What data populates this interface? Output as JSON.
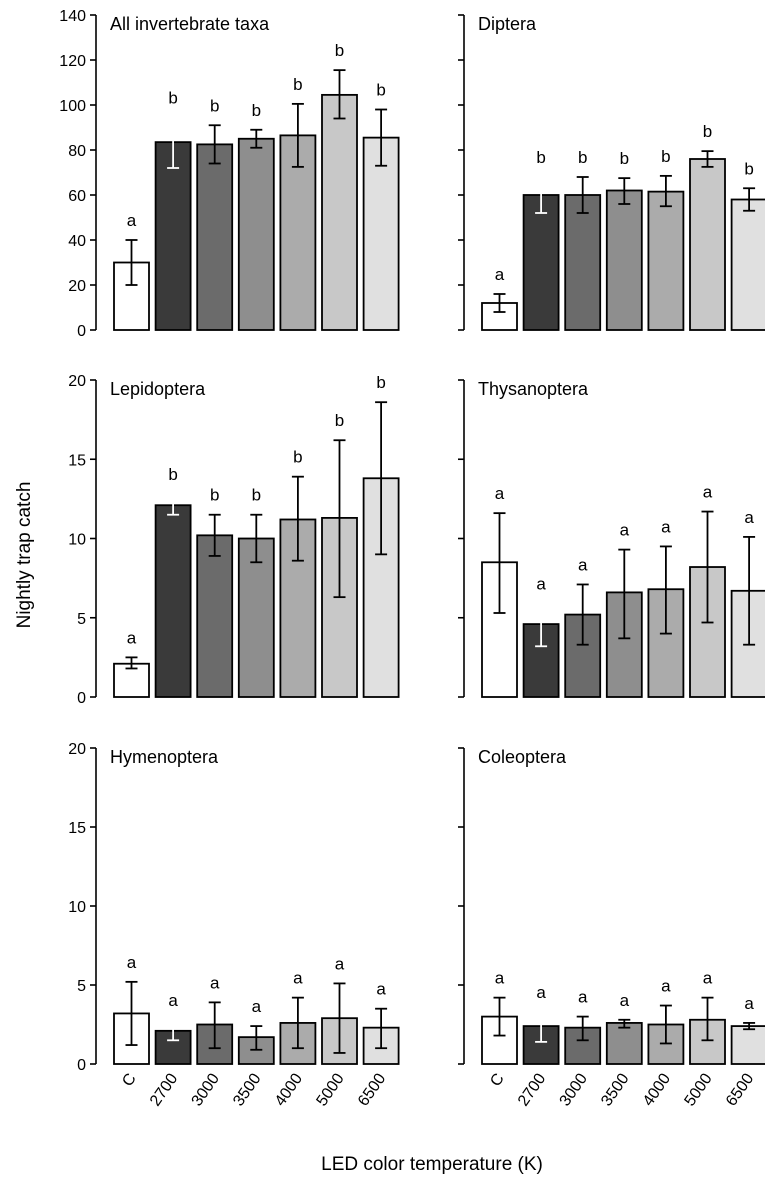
{
  "figure": {
    "ylabel": "Nightly trap catch",
    "xlabel": "LED color temperature (K)",
    "categories": [
      "C",
      "2700",
      "3000",
      "3500",
      "4000",
      "5000",
      "6500"
    ],
    "bar_colors": [
      "#ffffff",
      "#3a3a3a",
      "#6b6b6b",
      "#8e8e8e",
      "#ababab",
      "#c8c8c8",
      "#e0e0e0"
    ],
    "errorbar_colors": [
      "#000000",
      "#ffffff",
      "#000000",
      "#000000",
      "#000000",
      "#000000",
      "#000000"
    ]
  },
  "chart_data": [
    {
      "type": "bar",
      "title": "All invertebrate taxa",
      "categories": [
        "C",
        "2700",
        "3000",
        "3500",
        "4000",
        "5000",
        "6500"
      ],
      "values": [
        30,
        83.5,
        82.5,
        85,
        86.5,
        104.5,
        85.5
      ],
      "err_low": [
        20,
        72,
        74,
        81,
        72.5,
        94,
        73
      ],
      "err_high": [
        40,
        94.5,
        91,
        89,
        100.5,
        115.5,
        98
      ],
      "letters": [
        "a",
        "b",
        "b",
        "b",
        "b",
        "b",
        "b"
      ],
      "ylim": [
        0,
        140
      ],
      "yticks": [
        0,
        20,
        40,
        60,
        80,
        100,
        120,
        140
      ],
      "show_ytick_labels": true
    },
    {
      "type": "bar",
      "title": "Diptera",
      "categories": [
        "C",
        "2700",
        "3000",
        "3500",
        "4000",
        "5000",
        "6500"
      ],
      "values": [
        12,
        60,
        60,
        62,
        61.5,
        76,
        58
      ],
      "err_low": [
        8,
        52,
        52,
        56,
        55,
        72.5,
        53
      ],
      "err_high": [
        16,
        68,
        68,
        67.5,
        68.5,
        79.5,
        63
      ],
      "letters": [
        "a",
        "b",
        "b",
        "b",
        "b",
        "b",
        "b"
      ],
      "ylim": [
        0,
        140
      ],
      "yticks": [
        0,
        20,
        40,
        60,
        80,
        100,
        120,
        140
      ],
      "show_ytick_labels": false
    },
    {
      "type": "bar",
      "title": "Lepidoptera",
      "categories": [
        "C",
        "2700",
        "3000",
        "3500",
        "4000",
        "5000",
        "6500"
      ],
      "values": [
        2.1,
        12.1,
        10.2,
        10,
        11.2,
        11.3,
        13.8
      ],
      "err_low": [
        1.8,
        11.5,
        8.9,
        8.5,
        8.6,
        6.3,
        9
      ],
      "err_high": [
        2.5,
        12.8,
        11.5,
        11.5,
        13.9,
        16.2,
        18.6
      ],
      "letters": [
        "a",
        "b",
        "b",
        "b",
        "b",
        "b",
        "b"
      ],
      "ylim": [
        0,
        20
      ],
      "yticks": [
        0,
        5,
        10,
        15,
        20
      ],
      "show_ytick_labels": true
    },
    {
      "type": "bar",
      "title": "Thysanoptera",
      "categories": [
        "C",
        "2700",
        "3000",
        "3500",
        "4000",
        "5000",
        "6500"
      ],
      "values": [
        8.5,
        4.6,
        5.2,
        6.6,
        6.8,
        8.2,
        6.7
      ],
      "err_low": [
        5.3,
        3.2,
        3.3,
        3.7,
        4,
        4.7,
        3.3
      ],
      "err_high": [
        11.6,
        5.9,
        7.1,
        9.3,
        9.5,
        11.7,
        10.1
      ],
      "letters": [
        "a",
        "a",
        "a",
        "a",
        "a",
        "a",
        "a"
      ],
      "ylim": [
        0,
        20
      ],
      "yticks": [
        0,
        5,
        10,
        15,
        20
      ],
      "show_ytick_labels": false
    },
    {
      "type": "bar",
      "title": "Hymenoptera",
      "categories": [
        "C",
        "2700",
        "3000",
        "3500",
        "4000",
        "5000",
        "6500"
      ],
      "values": [
        3.2,
        2.1,
        2.5,
        1.7,
        2.6,
        2.9,
        2.3
      ],
      "err_low": [
        1.2,
        1.5,
        1,
        0.9,
        1,
        0.7,
        1
      ],
      "err_high": [
        5.2,
        2.8,
        3.9,
        2.4,
        4.2,
        5.1,
        3.5
      ],
      "letters": [
        "a",
        "a",
        "a",
        "a",
        "a",
        "a",
        "a"
      ],
      "ylim": [
        0,
        20
      ],
      "yticks": [
        0,
        5,
        10,
        15,
        20
      ],
      "show_ytick_labels": true
    },
    {
      "type": "bar",
      "title": "Coleoptera",
      "categories": [
        "C",
        "2700",
        "3000",
        "3500",
        "4000",
        "5000",
        "6500"
      ],
      "values": [
        3,
        2.4,
        2.3,
        2.6,
        2.5,
        2.8,
        2.4
      ],
      "err_low": [
        1.8,
        1.4,
        1.5,
        2.3,
        1.3,
        1.5,
        2.2
      ],
      "err_high": [
        4.2,
        3.3,
        3,
        2.8,
        3.7,
        4.2,
        2.6
      ],
      "letters": [
        "a",
        "a",
        "a",
        "a",
        "a",
        "a",
        "a"
      ],
      "ylim": [
        0,
        20
      ],
      "yticks": [
        0,
        5,
        10,
        15,
        20
      ],
      "show_ytick_labels": false
    }
  ]
}
